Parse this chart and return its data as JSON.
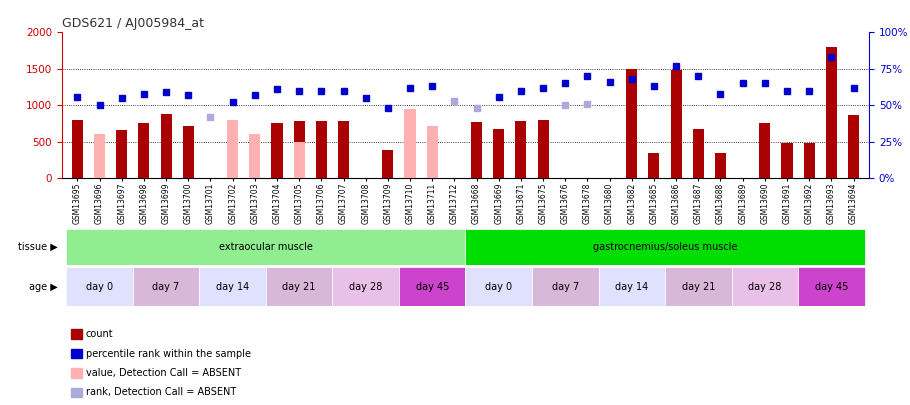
{
  "title": "GDS621 / AJ005984_at",
  "samples": [
    "GSM13695",
    "GSM13696",
    "GSM13697",
    "GSM13698",
    "GSM13699",
    "GSM13700",
    "GSM13701",
    "GSM13702",
    "GSM13703",
    "GSM13704",
    "GSM13705",
    "GSM13706",
    "GSM13707",
    "GSM13708",
    "GSM13709",
    "GSM13710",
    "GSM13711",
    "GSM13712",
    "GSM13668",
    "GSM13669",
    "GSM13671",
    "GSM13675",
    "GSM13676",
    "GSM13678",
    "GSM13680",
    "GSM13682",
    "GSM13685",
    "GSM13686",
    "GSM13687",
    "GSM13688",
    "GSM13689",
    "GSM13690",
    "GSM13691",
    "GSM13692",
    "GSM13693",
    "GSM13694"
  ],
  "count": [
    800,
    null,
    660,
    760,
    880,
    710,
    null,
    null,
    null,
    760,
    780,
    790,
    780,
    null,
    390,
    null,
    null,
    null,
    770,
    680,
    790,
    800,
    null,
    null,
    null,
    1500,
    340,
    1490,
    670,
    350,
    null,
    760,
    480,
    480,
    1800,
    870
  ],
  "count_absent": [
    null,
    600,
    null,
    null,
    null,
    null,
    null,
    800,
    610,
    null,
    490,
    null,
    null,
    null,
    null,
    950,
    720,
    null,
    null,
    null,
    null,
    null,
    null,
    null,
    null,
    null,
    null,
    null,
    null,
    null,
    null,
    null,
    null,
    null,
    null,
    null
  ],
  "pct_rank": [
    56,
    50,
    55,
    58,
    59,
    57,
    null,
    52,
    57,
    61,
    60,
    60,
    60,
    55,
    48,
    62,
    63,
    null,
    null,
    56,
    60,
    62,
    65,
    70,
    66,
    68,
    63,
    77,
    70,
    58,
    65,
    65,
    60,
    60,
    83,
    62
  ],
  "pct_rank_absent": [
    null,
    null,
    null,
    null,
    null,
    null,
    42,
    null,
    null,
    null,
    null,
    null,
    null,
    null,
    null,
    null,
    null,
    53,
    48,
    null,
    null,
    null,
    50,
    51,
    null,
    null,
    null,
    null,
    null,
    null,
    null,
    null,
    null,
    null,
    null,
    null
  ],
  "tissue_groups": [
    {
      "label": "extraocular muscle",
      "start": 0,
      "end": 18,
      "color": "#90EE90"
    },
    {
      "label": "gastrocnemius/soleus muscle",
      "start": 18,
      "end": 36,
      "color": "#00DD00"
    }
  ],
  "age_groups": [
    {
      "label": "day 0",
      "start": 0,
      "end": 3,
      "color": "#E0E0FF"
    },
    {
      "label": "day 7",
      "start": 3,
      "end": 6,
      "color": "#D8B8D8"
    },
    {
      "label": "day 14",
      "start": 6,
      "end": 9,
      "color": "#E0E0FF"
    },
    {
      "label": "day 21",
      "start": 9,
      "end": 12,
      "color": "#D8B8D8"
    },
    {
      "label": "day 28",
      "start": 12,
      "end": 15,
      "color": "#E8C0E8"
    },
    {
      "label": "day 45",
      "start": 15,
      "end": 18,
      "color": "#CC44CC"
    },
    {
      "label": "day 0",
      "start": 18,
      "end": 21,
      "color": "#E0E0FF"
    },
    {
      "label": "day 7",
      "start": 21,
      "end": 24,
      "color": "#D8B8D8"
    },
    {
      "label": "day 14",
      "start": 24,
      "end": 27,
      "color": "#E0E0FF"
    },
    {
      "label": "day 21",
      "start": 27,
      "end": 30,
      "color": "#D8B8D8"
    },
    {
      "label": "day 28",
      "start": 30,
      "end": 33,
      "color": "#E8C0E8"
    },
    {
      "label": "day 45",
      "start": 33,
      "end": 36,
      "color": "#CC44CC"
    }
  ],
  "ylim_left": [
    0,
    2000
  ],
  "ylim_right": [
    0,
    100
  ],
  "yticks_left": [
    0,
    500,
    1000,
    1500,
    2000
  ],
  "yticks_right": [
    0,
    25,
    50,
    75,
    100
  ],
  "bar_color": "#AA0000",
  "bar_absent_color": "#FFB0B0",
  "pct_color": "#0000CC",
  "pct_absent_color": "#AAAADD",
  "bg_color": "#FFFFFF",
  "title_color": "#333333",
  "left_axis_color": "#CC0000",
  "right_axis_color": "#0000CC",
  "grid_levels": [
    500,
    1000,
    1500
  ],
  "legend_items": [
    {
      "color": "#AA0000",
      "label": "count"
    },
    {
      "color": "#0000CC",
      "label": "percentile rank within the sample"
    },
    {
      "color": "#FFB0B0",
      "label": "value, Detection Call = ABSENT"
    },
    {
      "color": "#AAAADD",
      "label": "rank, Detection Call = ABSENT"
    }
  ]
}
